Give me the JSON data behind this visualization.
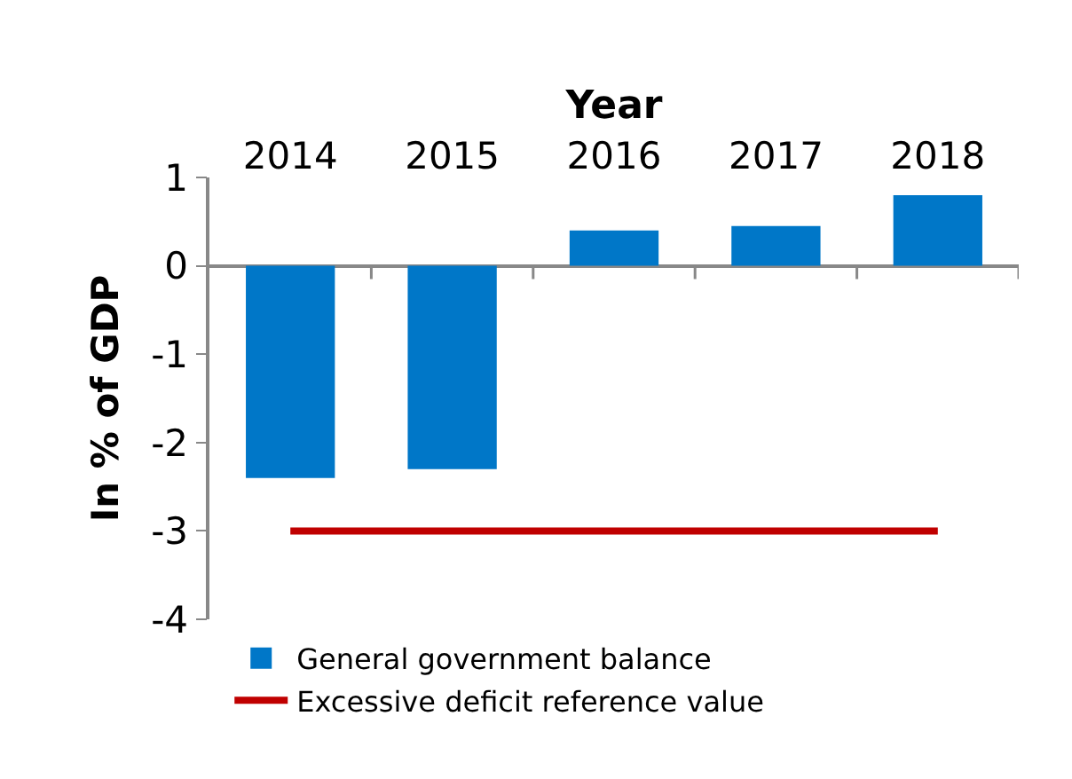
{
  "chart_data": {
    "type": "bar",
    "xlabel": "Year",
    "ylabel": "In % of GDP",
    "categories": [
      "2014",
      "2015",
      "2016",
      "2017",
      "2018"
    ],
    "series": [
      {
        "name": "General government balance",
        "color": "#0077c8",
        "values": [
          -2.4,
          -2.3,
          0.4,
          0.45,
          0.8
        ]
      },
      {
        "name": "Excessive deficit reference value",
        "type": "line",
        "color": "#c00000",
        "values": [
          -3,
          -3,
          -3,
          -3,
          -3
        ]
      }
    ],
    "ylim": [
      -4,
      1
    ],
    "yticks": [
      {
        "value": -4,
        "label": "-4"
      },
      {
        "value": -3,
        "label": "-3"
      },
      {
        "value": -2,
        "label": "-2"
      },
      {
        "value": -1,
        "label": "-1"
      },
      0,
      1
    ],
    "grid": false,
    "legend": "bottom"
  }
}
